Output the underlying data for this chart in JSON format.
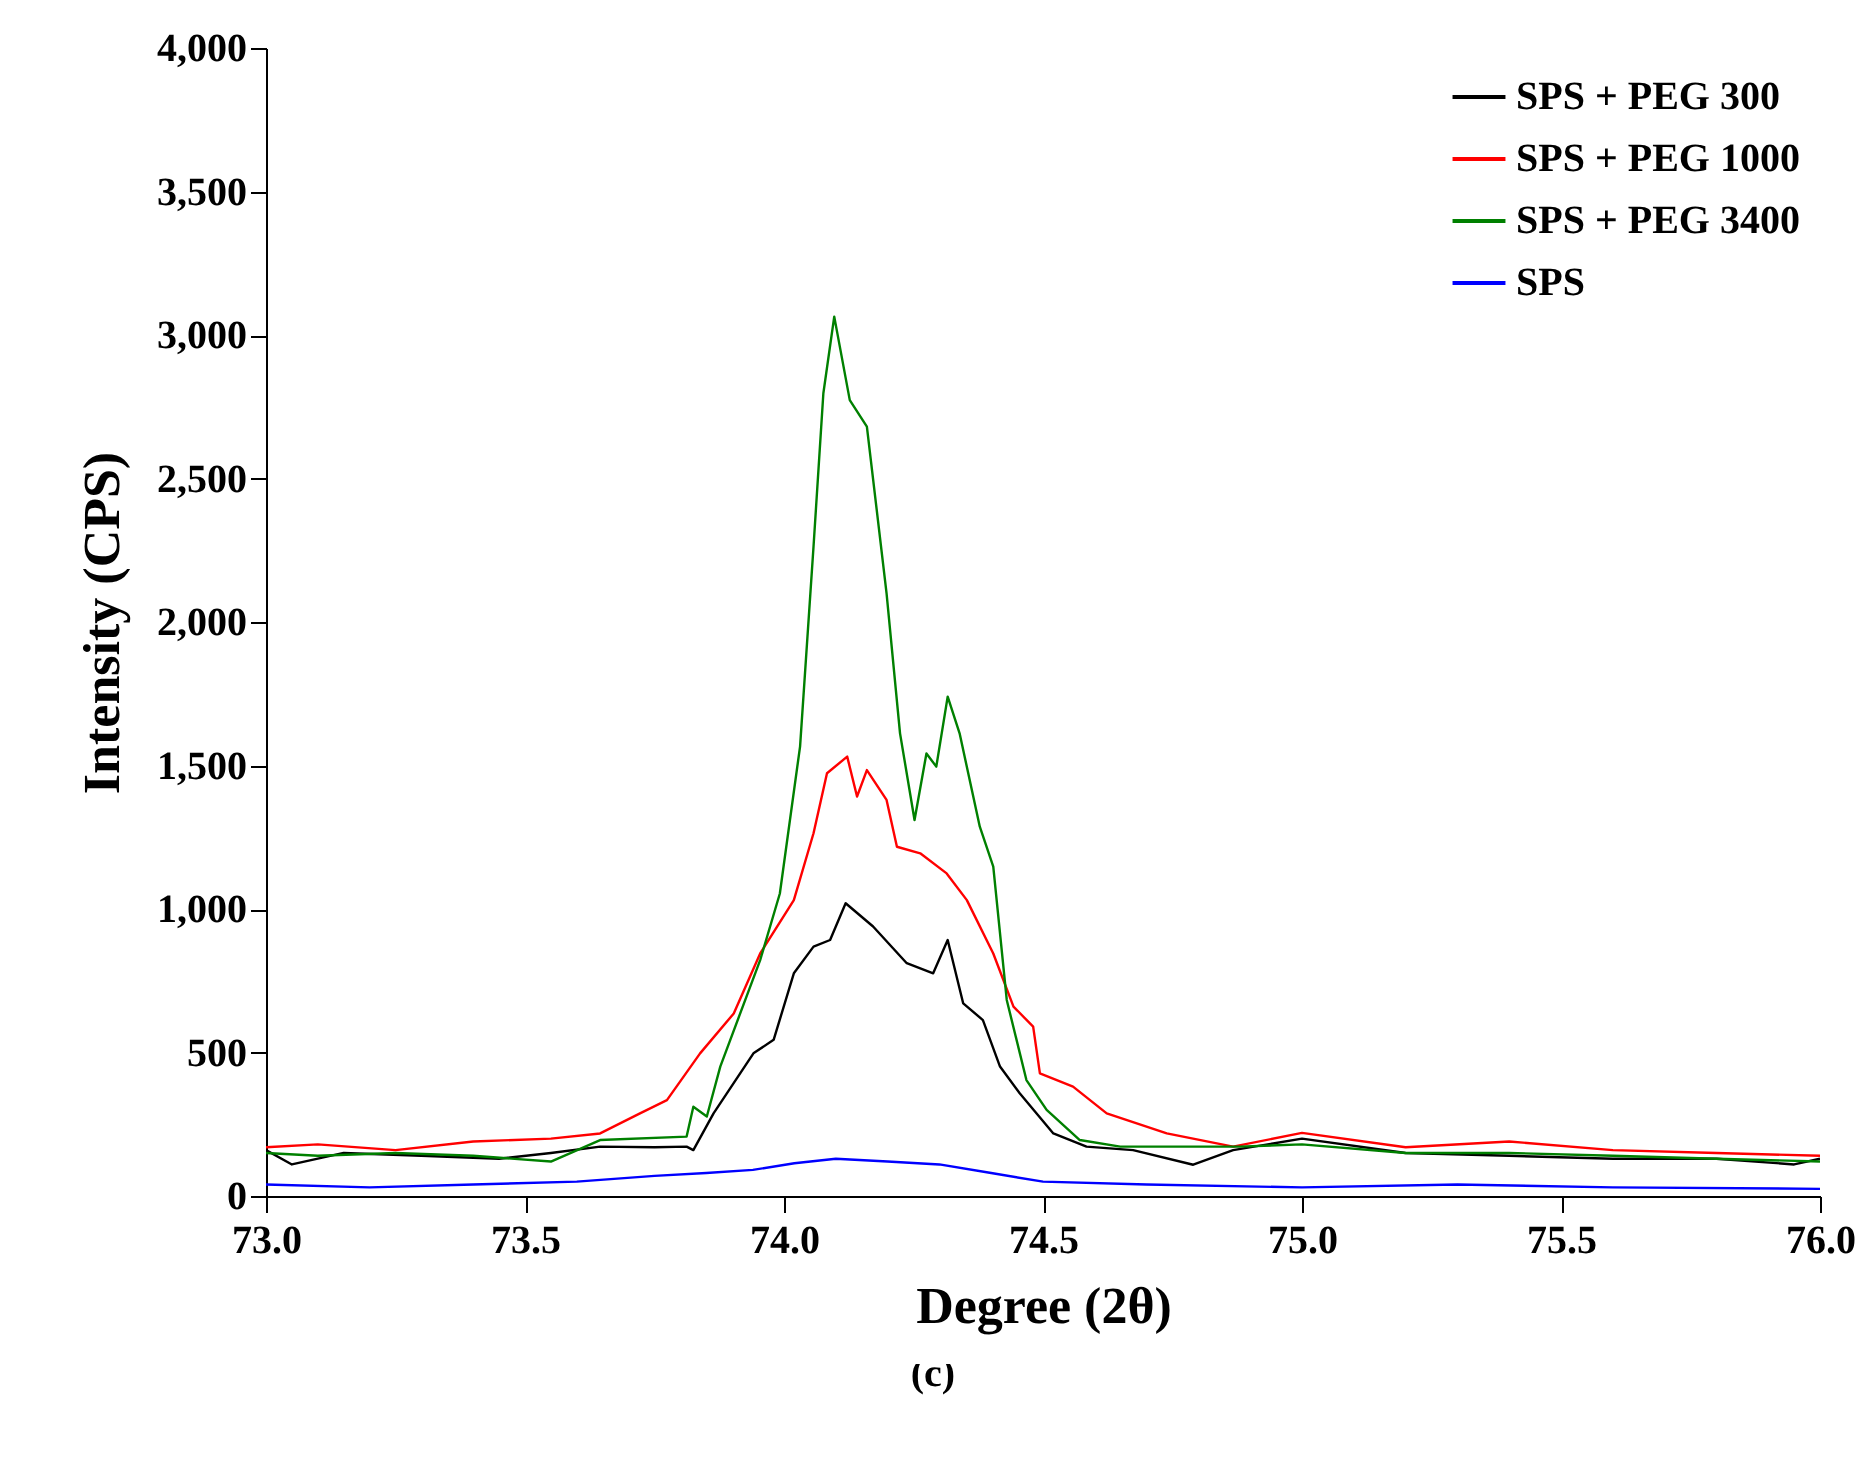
{
  "chart_data": {
    "type": "line",
    "xlabel": "Degree (2θ)",
    "ylabel": "Intensity (CPS)",
    "annotations": [
      "(c)"
    ],
    "xlim": [
      73.0,
      76.0
    ],
    "ylim": [
      0,
      4000
    ],
    "xticks": [
      {
        "value": 73.0,
        "label": "73.0"
      },
      {
        "value": 73.5,
        "label": "73.5"
      },
      {
        "value": 74.0,
        "label": "74.0"
      },
      {
        "value": 74.5,
        "label": "74.5"
      },
      {
        "value": 75.0,
        "label": "75.0"
      },
      {
        "value": 75.5,
        "label": "75.5"
      },
      {
        "value": 76.0,
        "label": "76.0"
      }
    ],
    "yticks": [
      0,
      500,
      {
        "value": 1000,
        "label": "1,000"
      },
      {
        "value": 1500,
        "label": "1,500"
      },
      {
        "value": 2000,
        "label": "2,000"
      },
      {
        "value": 2500,
        "label": "2,500"
      },
      {
        "value": 3000,
        "label": "3,000"
      },
      {
        "value": 3500,
        "label": "3,500"
      },
      {
        "value": 4000,
        "label": "4,000"
      }
    ],
    "grid": false,
    "legend": "top right",
    "marker": "none",
    "line_style": "solid",
    "series": [
      {
        "name": "SPS + PEG   300",
        "color": "#000000",
        "x": [
          73.0,
          73.05,
          73.15,
          73.3,
          73.45,
          73.55,
          73.645,
          73.75,
          73.812,
          73.825,
          73.864,
          73.941,
          73.98,
          74.019,
          74.057,
          74.089,
          74.119,
          74.172,
          74.237,
          74.288,
          74.316,
          74.346,
          74.384,
          74.417,
          74.455,
          74.52,
          74.584,
          74.674,
          74.79,
          74.867,
          75.0,
          75.2,
          75.4,
          75.6,
          75.8,
          75.95,
          76.0
        ],
        "values": [
          160,
          110,
          150,
          140,
          130,
          150,
          172,
          170,
          172,
          160,
          288,
          497,
          544,
          776,
          869,
          892,
          1020,
          939,
          811,
          776,
          892,
          671,
          613,
          451,
          358,
          218,
          172,
          160,
          109,
          160,
          200,
          150,
          140,
          130,
          130,
          110,
          130
        ]
      },
      {
        "name": "SPS + PEG 1000",
        "color": "#ff0000",
        "x": [
          73.0,
          73.1,
          73.25,
          73.4,
          73.55,
          73.645,
          73.722,
          73.774,
          73.838,
          73.903,
          73.954,
          74.019,
          74.057,
          74.083,
          74.122,
          74.141,
          74.16,
          74.198,
          74.218,
          74.263,
          74.314,
          74.353,
          74.404,
          74.443,
          74.481,
          74.494,
          74.558,
          74.623,
          74.739,
          74.867,
          75.0,
          75.2,
          75.4,
          75.6,
          75.8,
          76.0
        ],
        "values": [
          170,
          180,
          160,
          190,
          200,
          218,
          288,
          334,
          497,
          636,
          845,
          1031,
          1264,
          1473,
          1531,
          1392,
          1484,
          1380,
          1217,
          1194,
          1124,
          1031,
          845,
          660,
          590,
          427,
          381,
          288,
          218,
          172,
          220,
          170,
          190,
          160,
          150,
          140
        ]
      },
      {
        "name": "SPS + PEG 3400",
        "color": "#008000",
        "x": [
          73.0,
          73.1,
          73.25,
          73.4,
          73.55,
          73.645,
          73.812,
          73.825,
          73.851,
          73.877,
          73.954,
          73.992,
          74.031,
          74.057,
          74.076,
          74.097,
          74.127,
          74.16,
          74.198,
          74.224,
          74.252,
          74.275,
          74.294,
          74.316,
          74.339,
          74.378,
          74.404,
          74.43,
          74.468,
          74.507,
          74.571,
          74.649,
          74.739,
          74.88,
          75.0,
          75.2,
          75.4,
          75.6,
          75.8,
          76.0
        ],
        "values": [
          150,
          140,
          150,
          140,
          120,
          195,
          207,
          311,
          277,
          451,
          822,
          1054,
          1566,
          2263,
          2797,
          3064,
          2773,
          2681,
          2100,
          1612,
          1310,
          1542,
          1496,
          1740,
          1612,
          1287,
          1148,
          683,
          404,
          300,
          195,
          172,
          172,
          172,
          180,
          150,
          150,
          140,
          130,
          120
        ]
      },
      {
        "name": "SPS",
        "color": "#0000ff",
        "x": [
          73.0,
          73.2,
          73.4,
          73.6,
          73.75,
          73.85,
          73.94,
          74.02,
          74.1,
          74.2,
          74.3,
          74.4,
          74.5,
          74.7,
          75.0,
          75.3,
          75.6,
          76.0
        ],
        "values": [
          40,
          30,
          40,
          50,
          70,
          80,
          91,
          114,
          130,
          120,
          110,
          80,
          50,
          40,
          30,
          40,
          30,
          25
        ]
      }
    ]
  }
}
